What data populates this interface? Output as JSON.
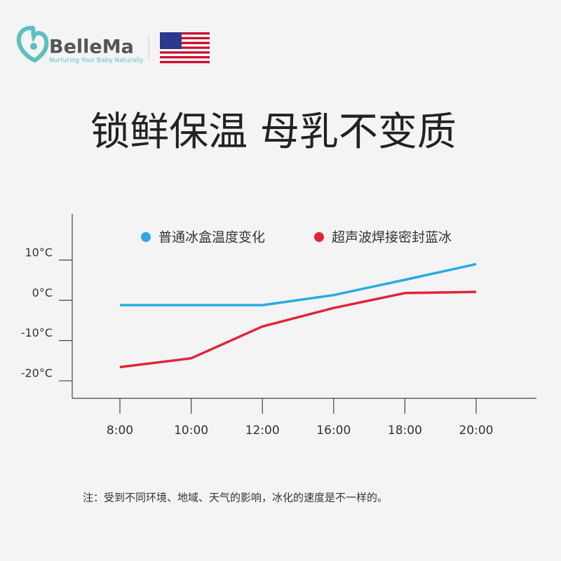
{
  "header": {
    "brand": "BelleMa",
    "tagline": "Nurturing Your Baby Naturally"
  },
  "chart_data": {
    "type": "line",
    "title": "锁鲜保温 母乳不变质",
    "categories": [
      "8:00",
      "10:00",
      "12:00",
      "16:00",
      "18:00",
      "20:00"
    ],
    "series": [
      {
        "name": "普通冰盒温度变化",
        "color": "#29abe2",
        "values": [
          -1.2,
          -1.2,
          -1.2,
          1.3,
          5.1,
          9
        ]
      },
      {
        "name": "超声波焊接密封蓝冰",
        "color": "#e0263a",
        "values": [
          -16.6,
          -14.4,
          -6.5,
          -1.9,
          1.8,
          2.1
        ]
      }
    ],
    "ylim": [
      -24,
      22
    ],
    "yticks": [
      {
        "value": 10,
        "label": "10°C"
      },
      {
        "value": 0,
        "label": "0°C"
      },
      {
        "value": -10,
        "label": "-10°C"
      },
      {
        "value": -20,
        "label": "-20°C"
      }
    ]
  },
  "note": "注：受到不同环境、地域、天气的影响，冰化的速度是不一样的。"
}
